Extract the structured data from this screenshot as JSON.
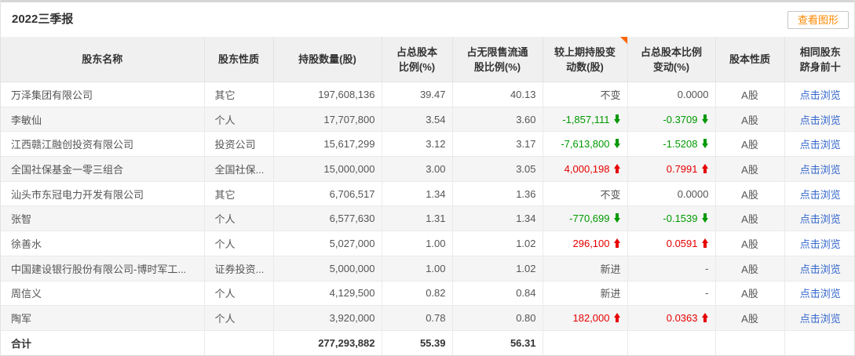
{
  "page": {
    "title": "2022三季报",
    "actions": {
      "view_chart": "查看图形"
    },
    "colors": {
      "accent_orange": "#ff8800",
      "up_red": "#e60000",
      "down_green": "#009900",
      "link_blue": "#3366cc",
      "corner_marker_orange": "#ff6600"
    }
  },
  "table": {
    "columns": [
      {
        "key": "name",
        "label": "股东名称",
        "align": "left"
      },
      {
        "key": "nature",
        "label": "股东性质",
        "align": "left"
      },
      {
        "key": "shares",
        "label": "持股数量(股)",
        "align": "right"
      },
      {
        "key": "pct_total",
        "label": "占总股本\n比例(%)",
        "align": "right"
      },
      {
        "key": "pct_float",
        "label": "占无限售流通\n股比例(%)",
        "align": "right"
      },
      {
        "key": "change_shares",
        "label": "较上期持股变\n动数(股)",
        "align": "right",
        "corner_marker": true
      },
      {
        "key": "change_pct",
        "label": "占总股本比例\n变动(%)",
        "align": "right"
      },
      {
        "key": "share_type",
        "label": "股本性质",
        "align": "center"
      },
      {
        "key": "same_top10",
        "label": "相同股东\n跻身前十",
        "align": "center",
        "link": true
      }
    ],
    "rows": [
      {
        "name": "万泽集团有限公司",
        "nature": "其它",
        "shares": "197,608,136",
        "pct_total": "39.47",
        "pct_float": "40.13",
        "change_shares": "不变",
        "change_pct": "0.0000",
        "trend": "flat",
        "share_type": "A股",
        "same_top10": "点击浏览"
      },
      {
        "name": "李敏仙",
        "nature": "个人",
        "shares": "17,707,800",
        "pct_total": "3.54",
        "pct_float": "3.60",
        "change_shares": "-1,857,111",
        "change_pct": "-0.3709",
        "trend": "down",
        "share_type": "A股",
        "same_top10": "点击浏览"
      },
      {
        "name": "江西赣江融创投资有限公司",
        "nature": "投资公司",
        "shares": "15,617,299",
        "pct_total": "3.12",
        "pct_float": "3.17",
        "change_shares": "-7,613,800",
        "change_pct": "-1.5208",
        "trend": "down",
        "share_type": "A股",
        "same_top10": "点击浏览"
      },
      {
        "name": "全国社保基金一零三组合",
        "nature": "全国社保...",
        "shares": "15,000,000",
        "pct_total": "3.00",
        "pct_float": "3.05",
        "change_shares": "4,000,198",
        "change_pct": "0.7991",
        "trend": "up",
        "share_type": "A股",
        "same_top10": "点击浏览"
      },
      {
        "name": "汕头市东冠电力开发有限公司",
        "nature": "其它",
        "shares": "6,706,517",
        "pct_total": "1.34",
        "pct_float": "1.36",
        "change_shares": "不变",
        "change_pct": "0.0000",
        "trend": "flat",
        "share_type": "A股",
        "same_top10": "点击浏览"
      },
      {
        "name": "张智",
        "nature": "个人",
        "shares": "6,577,630",
        "pct_total": "1.31",
        "pct_float": "1.34",
        "change_shares": "-770,699",
        "change_pct": "-0.1539",
        "trend": "down",
        "share_type": "A股",
        "same_top10": "点击浏览"
      },
      {
        "name": "徐善水",
        "nature": "个人",
        "shares": "5,027,000",
        "pct_total": "1.00",
        "pct_float": "1.02",
        "change_shares": "296,100",
        "change_pct": "0.0591",
        "trend": "up",
        "share_type": "A股",
        "same_top10": "点击浏览"
      },
      {
        "name": "中国建设银行股份有限公司-博时军工...",
        "nature": "证券投资...",
        "shares": "5,000,000",
        "pct_total": "1.00",
        "pct_float": "1.02",
        "change_shares": "新进",
        "change_pct": "-",
        "trend": "new",
        "share_type": "A股",
        "same_top10": "点击浏览"
      },
      {
        "name": "周信义",
        "nature": "个人",
        "shares": "4,129,500",
        "pct_total": "0.82",
        "pct_float": "0.84",
        "change_shares": "新进",
        "change_pct": "-",
        "trend": "new",
        "share_type": "A股",
        "same_top10": "点击浏览"
      },
      {
        "name": "陶军",
        "nature": "个人",
        "shares": "3,920,000",
        "pct_total": "0.78",
        "pct_float": "0.80",
        "change_shares": "182,000",
        "change_pct": "0.0363",
        "trend": "up",
        "share_type": "A股",
        "same_top10": "点击浏览"
      }
    ],
    "total_row": {
      "name": "合计",
      "nature": "",
      "shares": "277,293,882",
      "pct_total": "55.39",
      "pct_float": "56.31",
      "change_shares": "",
      "change_pct": "",
      "share_type": "",
      "same_top10": ""
    }
  }
}
